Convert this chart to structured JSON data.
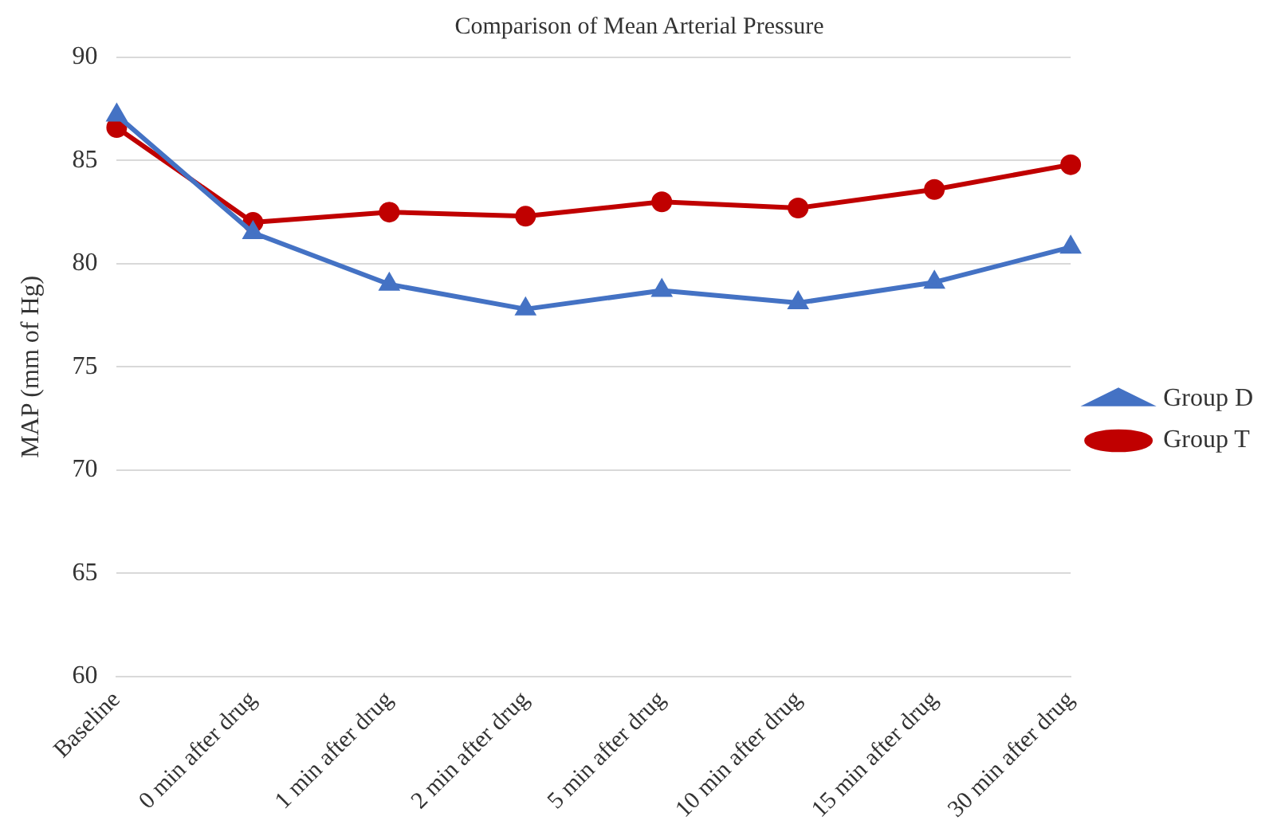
{
  "chart_data": {
    "type": "line",
    "title": "Comparison of Mean Arterial Pressure",
    "ylabel": "MAP (mm of Hg)",
    "categories": [
      "Baseline",
      "0 min after drug",
      "1 min after drug",
      "2 min after drug",
      "5 min after drug",
      "10 min after drug",
      "15 min after drug",
      "30 min after drug"
    ],
    "series": [
      {
        "name": "Group D",
        "color": "#4472c4",
        "marker": "triangle",
        "values": [
          87.2,
          81.5,
          79.0,
          77.8,
          78.7,
          78.1,
          79.1,
          80.8
        ]
      },
      {
        "name": "Group T",
        "color": "#c00000",
        "marker": "circle",
        "values": [
          86.6,
          82.0,
          82.5,
          82.3,
          83.0,
          82.7,
          83.6,
          84.8
        ]
      }
    ],
    "ylim": [
      60,
      90
    ],
    "yticks": [
      60,
      65,
      70,
      75,
      80,
      85,
      90
    ],
    "grid": "y",
    "legend": "right",
    "line_style": "solid"
  }
}
